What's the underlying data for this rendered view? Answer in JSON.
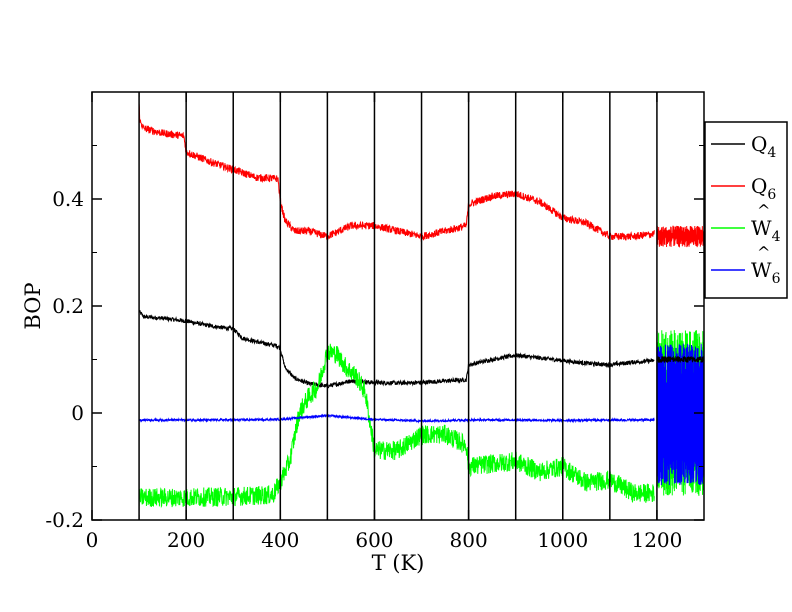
{
  "chart_data": {
    "type": "line",
    "title": "",
    "xlabel": "T (K)",
    "ylabel": "BOP",
    "xlim": [
      0,
      1300
    ],
    "ylim": [
      -0.2,
      0.6
    ],
    "x_ticks": [
      0,
      200,
      400,
      600,
      800,
      1000,
      1200
    ],
    "x_tick_labels": [
      "0",
      "200",
      "400",
      "600",
      "800",
      "1000",
      "1200"
    ],
    "y_ticks": [
      -0.2,
      0,
      0.2,
      0.4
    ],
    "y_tick_labels": [
      "-0.2",
      "0",
      "0.2",
      "0.4"
    ],
    "vertical_lines_x": [
      100,
      200,
      300,
      400,
      500,
      600,
      700,
      800,
      900,
      1000,
      1100,
      1200
    ],
    "grid": false,
    "legend_position": "right",
    "series": [
      {
        "name": "Q4",
        "legend_main": "Q",
        "legend_sub": "4",
        "legend_hat": false,
        "color": "#000000",
        "x": [
          100,
          110,
          150,
          200,
          250,
          300,
          320,
          350,
          395,
          400,
          410,
          430,
          460,
          500,
          550,
          600,
          650,
          700,
          750,
          795,
          800,
          850,
          900,
          950,
          1000,
          1050,
          1100,
          1150,
          1195
        ],
        "y": [
          0.19,
          0.18,
          0.177,
          0.172,
          0.163,
          0.157,
          0.14,
          0.133,
          0.125,
          0.12,
          0.085,
          0.065,
          0.055,
          0.05,
          0.06,
          0.057,
          0.056,
          0.057,
          0.06,
          0.062,
          0.09,
          0.1,
          0.108,
          0.103,
          0.098,
          0.093,
          0.09,
          0.095,
          0.098
        ],
        "noise": 0.004
      },
      {
        "name": "Q6",
        "legend_main": "Q",
        "legend_sub": "6",
        "legend_hat": false,
        "color": "#ff0000",
        "x": [
          100,
          102,
          110,
          150,
          195,
          200,
          250,
          300,
          350,
          395,
          400,
          410,
          430,
          460,
          500,
          550,
          600,
          650,
          700,
          750,
          795,
          800,
          850,
          900,
          950,
          1000,
          1050,
          1100,
          1150,
          1195
        ],
        "y": [
          0.575,
          0.545,
          0.532,
          0.523,
          0.518,
          0.488,
          0.47,
          0.455,
          0.44,
          0.438,
          0.395,
          0.36,
          0.34,
          0.34,
          0.33,
          0.35,
          0.35,
          0.34,
          0.33,
          0.34,
          0.35,
          0.39,
          0.405,
          0.41,
          0.395,
          0.365,
          0.355,
          0.33,
          0.33,
          0.335
        ],
        "noise": 0.007
      },
      {
        "name": "W4",
        "legend_main": "W",
        "legend_sub": "4",
        "legend_hat": true,
        "color": "#00ff00",
        "x": [
          100,
          200,
          300,
          385,
          400,
          420,
          440,
          460,
          480,
          500,
          520,
          540,
          560,
          580,
          600,
          650,
          700,
          750,
          795,
          800,
          850,
          900,
          950,
          1000,
          1050,
          1100,
          1150,
          1195
        ],
        "y": [
          -0.158,
          -0.158,
          -0.156,
          -0.153,
          -0.128,
          -0.09,
          0.0,
          0.03,
          0.05,
          0.115,
          0.11,
          0.085,
          0.07,
          0.04,
          -0.07,
          -0.07,
          -0.04,
          -0.04,
          -0.06,
          -0.1,
          -0.095,
          -0.09,
          -0.11,
          -0.1,
          -0.13,
          -0.125,
          -0.15,
          -0.15
        ],
        "noise": 0.018
      },
      {
        "name": "W6",
        "legend_main": "W",
        "legend_sub": "6",
        "legend_hat": true,
        "color": "#0000ff",
        "x": [
          100,
          200,
          300,
          400,
          450,
          500,
          600,
          700,
          800,
          900,
          1000,
          1100,
          1195
        ],
        "y": [
          -0.013,
          -0.013,
          -0.013,
          -0.012,
          -0.008,
          -0.005,
          -0.012,
          -0.015,
          -0.013,
          -0.013,
          -0.014,
          -0.013,
          -0.013
        ],
        "noise": 0.002
      }
    ],
    "high_temperature_band": {
      "x_range": [
        1200,
        1300
      ],
      "Q4_level": 0.1,
      "Q6_level": 0.33,
      "W4_range": [
        -0.155,
        0.155
      ],
      "W6_range": [
        -0.135,
        0.13
      ]
    }
  }
}
